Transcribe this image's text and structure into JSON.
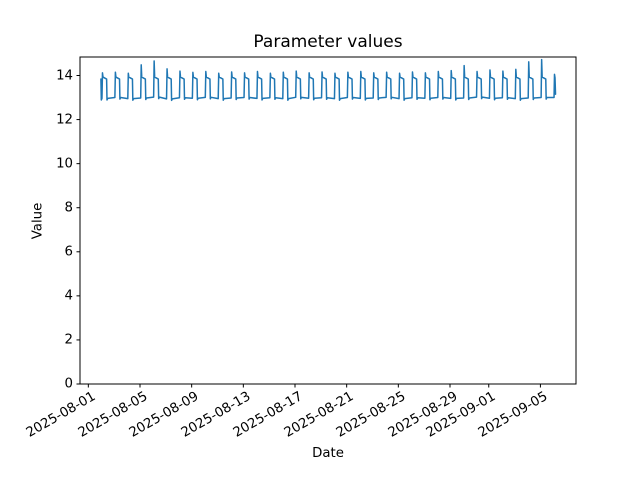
{
  "figure": {
    "background": "#ffffff",
    "text_color": "#000000",
    "spine_color": "#000000"
  },
  "chart_data": {
    "type": "line",
    "title": "Parameter values",
    "xlabel": "Date",
    "ylabel": "Value",
    "grid": false,
    "legend": null,
    "line_color": "#1f77b4",
    "line_width": 1.5,
    "x_start_date": "2025-08-01",
    "xlim_days": [
      -0.645,
      37.755
    ],
    "ylim": [
      0,
      14.84
    ],
    "y_ticks": [
      0,
      2,
      4,
      6,
      8,
      10,
      12,
      14
    ],
    "x_ticks": [
      {
        "day": 0,
        "label": "2025-08-01"
      },
      {
        "day": 4,
        "label": "2025-08-05"
      },
      {
        "day": 8,
        "label": "2025-08-09"
      },
      {
        "day": 12,
        "label": "2025-08-13"
      },
      {
        "day": 16,
        "label": "2025-08-17"
      },
      {
        "day": 20,
        "label": "2025-08-21"
      },
      {
        "day": 24,
        "label": "2025-08-25"
      },
      {
        "day": 28,
        "label": "2025-08-29"
      },
      {
        "day": 31,
        "label": "2025-09-01"
      },
      {
        "day": 35,
        "label": "2025-09-05"
      }
    ],
    "waveform": {
      "description": "daily cycle: long low plateau, sharp morning spike, high plateau, drop with small undershoot",
      "high_start": 13.93,
      "high_end": 13.84,
      "undershoot": 0.07,
      "phases": {
        "low_end": 0.055,
        "spike": 0.095,
        "high_start": 0.135,
        "high_end": 0.415,
        "drop": 0.445,
        "low_start": 0.5
      },
      "lead_in": [
        [
          0.975,
          13.84
        ],
        [
          1.005,
          12.89
        ]
      ],
      "tail": [
        [
          36.055,
          13.0
        ],
        [
          36.09,
          14.05
        ],
        [
          36.13,
          13.9
        ],
        [
          36.17,
          13.15
        ]
      ]
    },
    "days": [
      {
        "date": "2025-08-02",
        "spike": 14.12,
        "low": 12.96
      },
      {
        "date": "2025-08-03",
        "spike": 14.15,
        "low": 13.0
      },
      {
        "date": "2025-08-04",
        "spike": 14.1,
        "low": 12.95
      },
      {
        "date": "2025-08-05",
        "spike": 14.48,
        "low": 12.98
      },
      {
        "date": "2025-08-06",
        "spike": 14.66,
        "low": 13.02
      },
      {
        "date": "2025-08-07",
        "spike": 14.3,
        "low": 12.94
      },
      {
        "date": "2025-08-08",
        "spike": 14.2,
        "low": 12.99
      },
      {
        "date": "2025-08-09",
        "spike": 14.14,
        "low": 12.97
      },
      {
        "date": "2025-08-10",
        "spike": 14.18,
        "low": 13.01
      },
      {
        "date": "2025-08-11",
        "spike": 14.1,
        "low": 12.95
      },
      {
        "date": "2025-08-12",
        "spike": 14.16,
        "low": 12.98
      },
      {
        "date": "2025-08-13",
        "spike": 14.12,
        "low": 13.0
      },
      {
        "date": "2025-08-14",
        "spike": 14.18,
        "low": 12.96
      },
      {
        "date": "2025-08-15",
        "spike": 14.1,
        "low": 12.99
      },
      {
        "date": "2025-08-16",
        "spike": 14.15,
        "low": 12.95
      },
      {
        "date": "2025-08-17",
        "spike": 14.2,
        "low": 13.01
      },
      {
        "date": "2025-08-18",
        "spike": 14.12,
        "low": 12.97
      },
      {
        "date": "2025-08-19",
        "spike": 14.16,
        "low": 12.99
      },
      {
        "date": "2025-08-20",
        "spike": 14.1,
        "low": 12.95
      },
      {
        "date": "2025-08-21",
        "spike": 14.15,
        "low": 13.0
      },
      {
        "date": "2025-08-22",
        "spike": 14.18,
        "low": 12.96
      },
      {
        "date": "2025-08-23",
        "spike": 14.12,
        "low": 12.98
      },
      {
        "date": "2025-08-24",
        "spike": 14.15,
        "low": 13.01
      },
      {
        "date": "2025-08-25",
        "spike": 14.1,
        "low": 12.95
      },
      {
        "date": "2025-08-26",
        "spike": 14.16,
        "low": 12.99
      },
      {
        "date": "2025-08-27",
        "spike": 14.12,
        "low": 12.97
      },
      {
        "date": "2025-08-28",
        "spike": 14.18,
        "low": 13.0
      },
      {
        "date": "2025-08-29",
        "spike": 14.22,
        "low": 12.96
      },
      {
        "date": "2025-08-30",
        "spike": 14.45,
        "low": 12.98
      },
      {
        "date": "2025-08-31",
        "spike": 14.18,
        "low": 13.02
      },
      {
        "date": "2025-09-01",
        "spike": 14.25,
        "low": 12.97
      },
      {
        "date": "2025-09-02",
        "spike": 14.2,
        "low": 12.99
      },
      {
        "date": "2025-09-03",
        "spike": 14.28,
        "low": 12.95
      },
      {
        "date": "2025-09-04",
        "spike": 14.62,
        "low": 12.98
      },
      {
        "date": "2025-09-05",
        "spike": 14.72,
        "low": 13.0
      }
    ]
  }
}
